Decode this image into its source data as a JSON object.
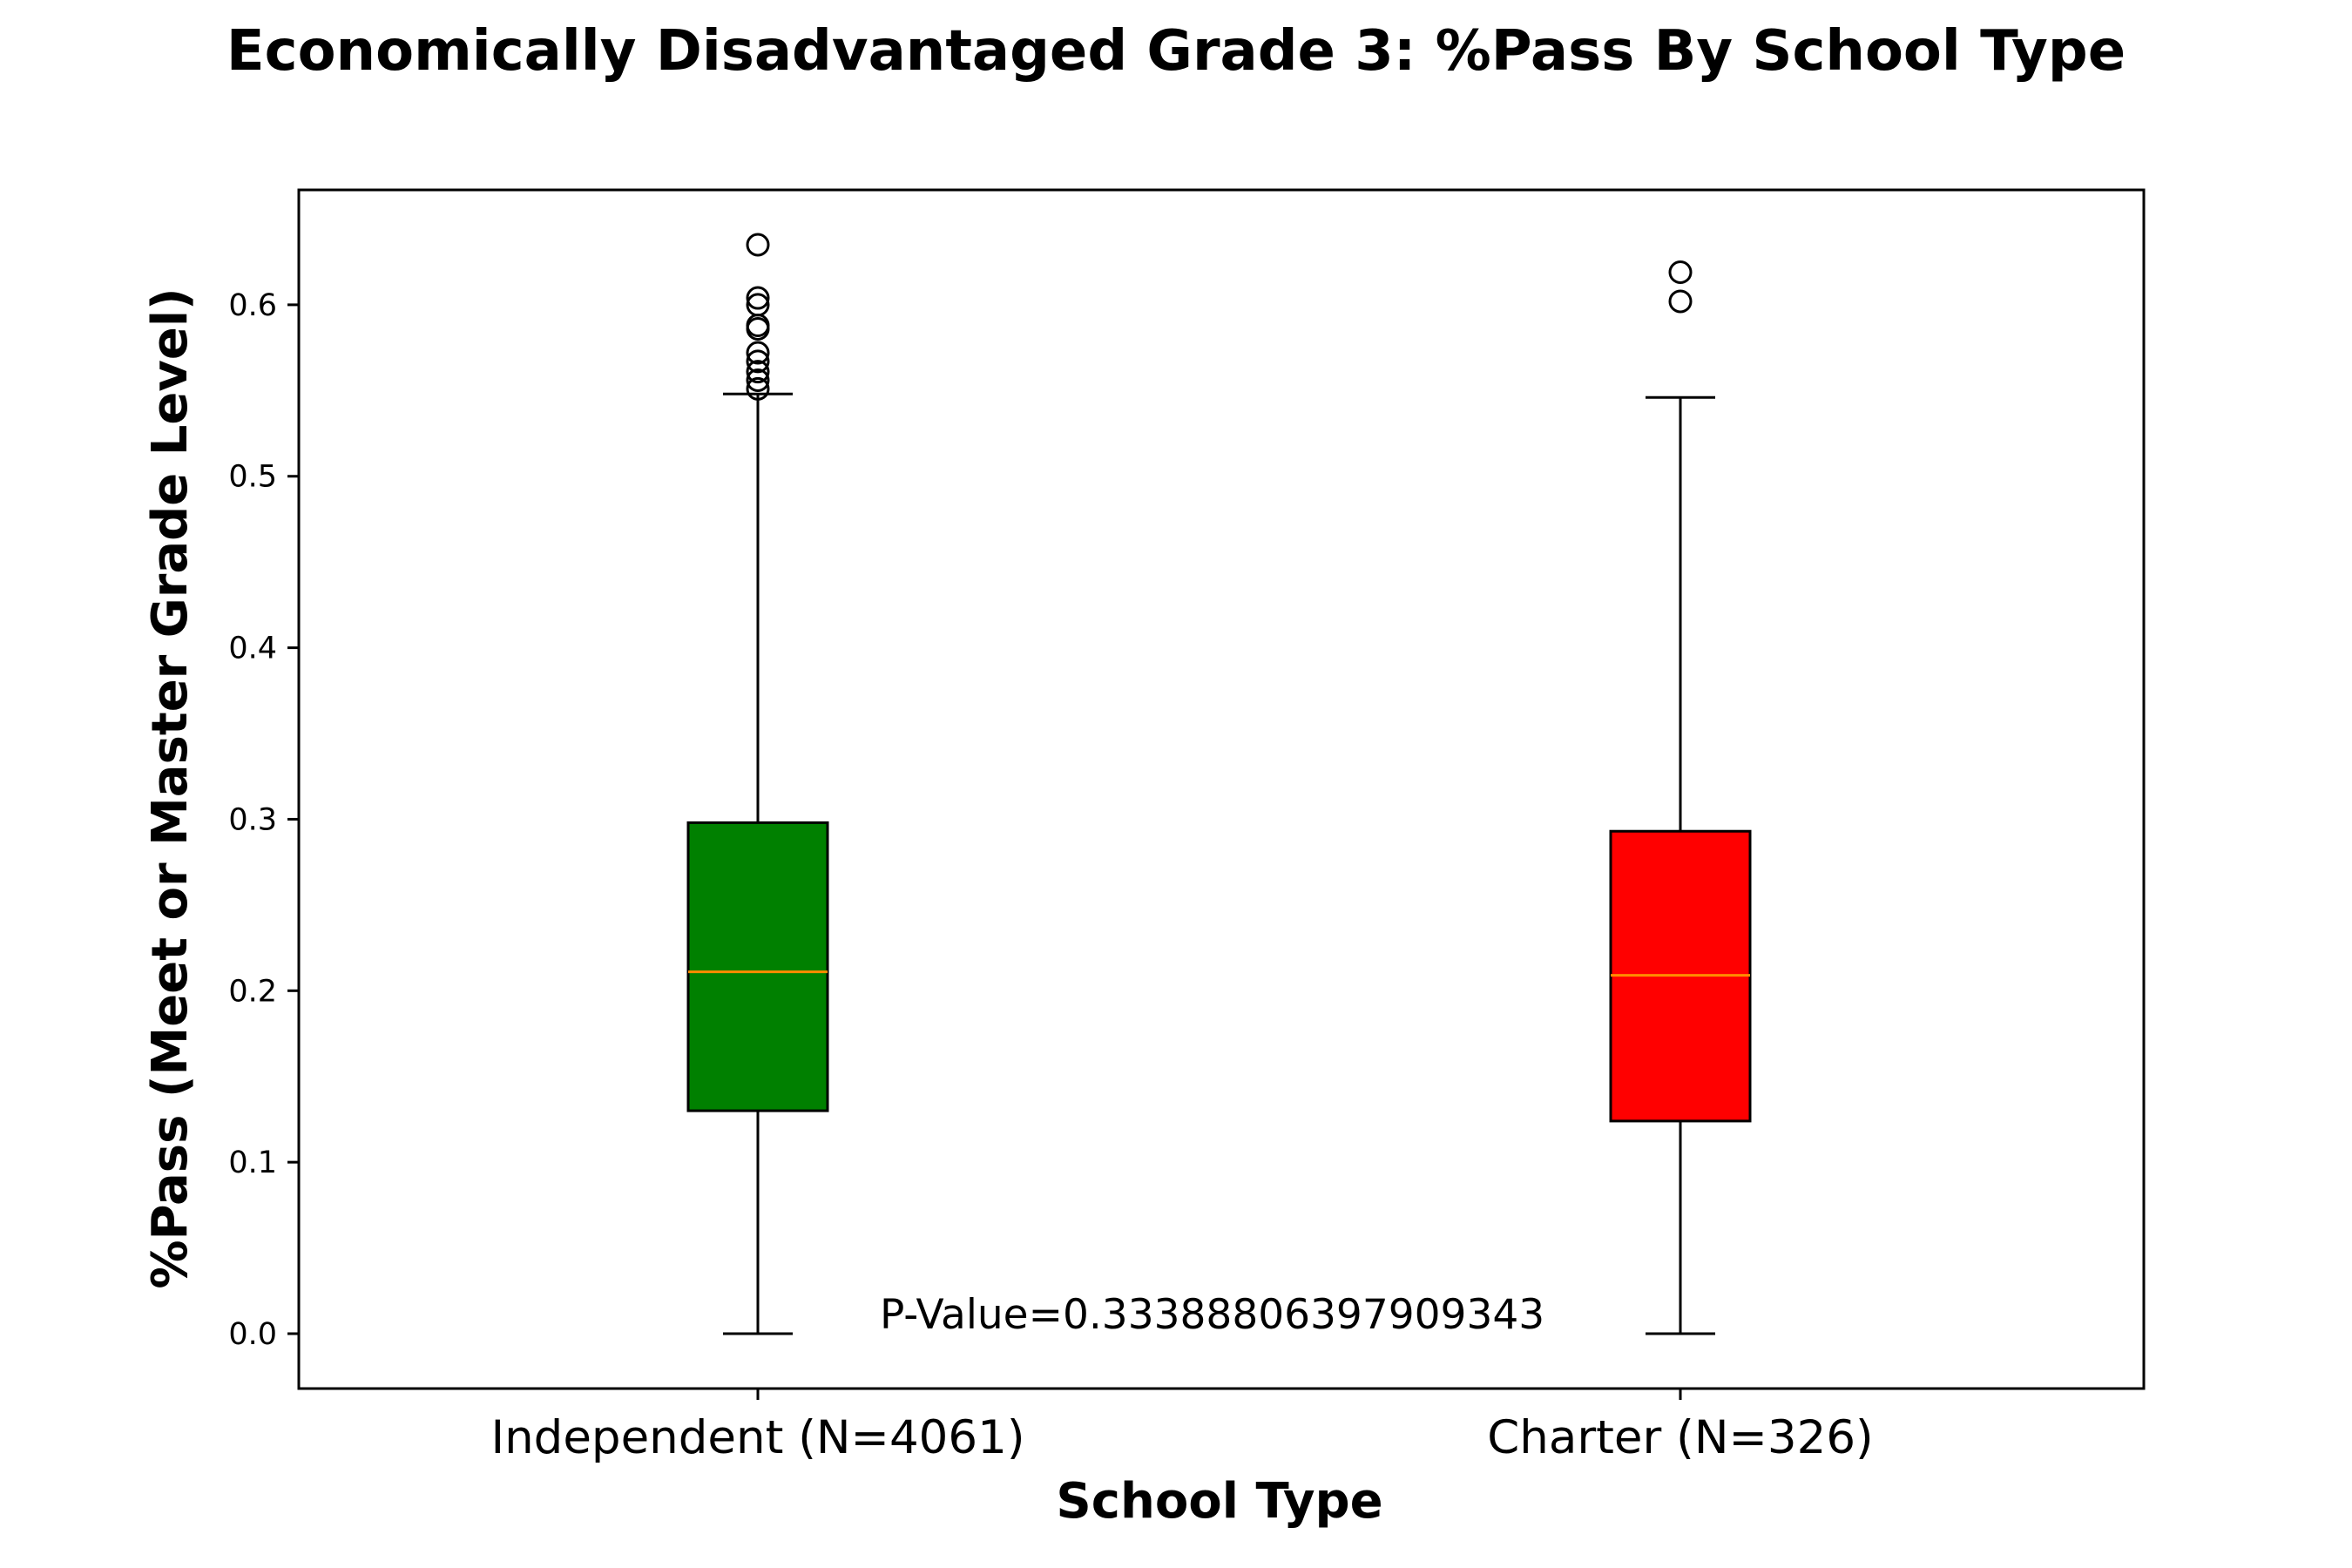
{
  "chart_data": {
    "type": "box",
    "title": "Economically Disadvantaged Grade 3: %Pass By School Type",
    "xlabel": "School Type",
    "ylabel": "%Pass (Meet or Master Grade Level)",
    "ylim": [
      -0.032,
      0.667
    ],
    "yticks": [
      {
        "value": 0.0,
        "label": "0.0"
      },
      {
        "value": 0.1,
        "label": "0.1"
      },
      {
        "value": 0.2,
        "label": "0.2"
      },
      {
        "value": 0.3,
        "label": "0.3"
      },
      {
        "value": 0.4,
        "label": "0.4"
      },
      {
        "value": 0.5,
        "label": "0.5"
      },
      {
        "value": 0.6,
        "label": "0.6"
      }
    ],
    "grid": false,
    "categories": [
      "Independent (N=4061)",
      "Charter (N=326)"
    ],
    "boxes": [
      {
        "label": "Independent (N=4061)",
        "color": "#008000",
        "whisker_low": 0.0,
        "q1": 0.13,
        "median": 0.211,
        "q3": 0.298,
        "whisker_high": 0.548,
        "outliers": [
          0.551,
          0.556,
          0.561,
          0.567,
          0.572,
          0.586,
          0.588,
          0.6,
          0.604,
          0.635
        ]
      },
      {
        "label": "Charter (N=326)",
        "color": "#ff0000",
        "whisker_low": 0.0,
        "q1": 0.124,
        "median": 0.209,
        "q3": 0.293,
        "whisker_high": 0.546,
        "outliers": [
          0.602,
          0.619
        ]
      }
    ],
    "median_color": "#ff8c00",
    "annotation": "P-Value=0.33388806397909343"
  }
}
